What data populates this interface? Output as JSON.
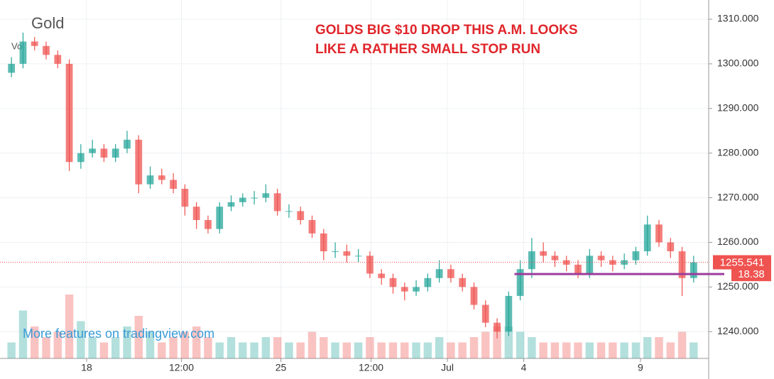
{
  "chart_data": {
    "type": "candlestick",
    "title": "Gold",
    "volume_label": "Vol",
    "annotation": [
      "GOLDS BIG $10 DROP THIS A.M.  LOOKS",
      "LIKE A RATHER SMALL STOP RUN"
    ],
    "watermark": "More features on tradingview.com",
    "up_color": "#26a69a",
    "down_color": "#ef5350",
    "open": [
      1298,
      1300,
      1305,
      1304,
      1302,
      1300,
      1278,
      1280,
      1281,
      1279,
      1281,
      1283,
      1273,
      1275,
      1274,
      1272,
      1268,
      1265,
      1263,
      1268,
      1269,
      1270,
      1270,
      1271,
      1267,
      1267,
      1265,
      1262,
      1258,
      1258,
      1257,
      1257,
      1253,
      1252,
      1250,
      1249,
      1250,
      1252,
      1254,
      1252,
      1250,
      1246,
      1242,
      1240,
      1248,
      1254,
      1258,
      1257,
      1256,
      1255,
      1253,
      1257,
      1256,
      1255,
      1256,
      1258,
      1264,
      1260,
      1258,
      1252
    ],
    "high": [
      1301.5,
      1307,
      1306,
      1305,
      1303,
      1301,
      1282,
      1283,
      1282,
      1282,
      1285,
      1284,
      1277,
      1276.5,
      1275.5,
      1273,
      1269,
      1266,
      1269,
      1270.5,
      1271,
      1271.5,
      1273,
      1272,
      1268.5,
      1268,
      1266,
      1263,
      1260,
      1259.5,
      1258.5,
      1258,
      1254,
      1253,
      1251,
      1251.5,
      1253,
      1256,
      1255,
      1253,
      1251,
      1247,
      1243,
      1249,
      1256,
      1261,
      1260,
      1258,
      1257,
      1256,
      1258.5,
      1258,
      1257,
      1257.5,
      1259,
      1266,
      1265,
      1261,
      1259,
      1257
    ],
    "low": [
      1297,
      1299,
      1303,
      1301,
      1299,
      1276,
      1276.5,
      1279,
      1278,
      1278,
      1280,
      1271,
      1272,
      1273,
      1271,
      1266,
      1263,
      1262,
      1262,
      1267,
      1268,
      1268.5,
      1269,
      1266,
      1265.5,
      1264,
      1261,
      1256,
      1256.5,
      1255.5,
      1255.5,
      1252,
      1250.5,
      1248.5,
      1247,
      1248,
      1249,
      1251,
      1251,
      1249,
      1245,
      1241,
      1238.5,
      1239,
      1247,
      1252,
      1255.5,
      1254.5,
      1253.5,
      1252,
      1252,
      1254.5,
      1253.5,
      1254,
      1255,
      1257,
      1259,
      1256.5,
      1248,
      1251
    ],
    "close": [
      1300,
      1305,
      1304,
      1302,
      1300,
      1278,
      1280,
      1281,
      1279,
      1281,
      1283,
      1273,
      1275,
      1274,
      1272,
      1268,
      1265,
      1263,
      1268,
      1269,
      1270,
      1270,
      1271,
      1267,
      1267,
      1265,
      1262,
      1258,
      1258,
      1257,
      1257,
      1253,
      1252,
      1250,
      1249,
      1250,
      1252,
      1254,
      1252,
      1250,
      1246,
      1242,
      1240,
      1248,
      1254,
      1258,
      1257,
      1256,
      1255,
      1253,
      1257,
      1256,
      1255,
      1256,
      1258,
      1264,
      1260,
      1258,
      1252,
      1255.5
    ],
    "volume": [
      3,
      9,
      6,
      4,
      5,
      12,
      7,
      4,
      3,
      4,
      6,
      8,
      5,
      3,
      4,
      5,
      6,
      4,
      3,
      4,
      3,
      3,
      4,
      4,
      3,
      3,
      5,
      4,
      3,
      3,
      3,
      4,
      3,
      3,
      3,
      3,
      3,
      4,
      3,
      3,
      4,
      5,
      6,
      6,
      5,
      4,
      3,
      3,
      3,
      3,
      3,
      3,
      3,
      3,
      3,
      4,
      4,
      3,
      5,
      3
    ],
    "xlim": [
      -0.5,
      59.5
    ],
    "xticks": [
      {
        "value": 6.5,
        "label": "18"
      },
      {
        "value": 14.7,
        "label": "12:00"
      },
      {
        "value": 23.3,
        "label": "25"
      },
      {
        "value": 31.1,
        "label": "12:00"
      },
      {
        "value": 37.7,
        "label": "Jul"
      },
      {
        "value": 44.3,
        "label": "4"
      },
      {
        "value": 54.4,
        "label": "9"
      }
    ],
    "ylim": [
      1234,
      1314.3
    ],
    "yticks": [
      {
        "value": 1240,
        "label": "1240.000"
      },
      {
        "value": 1250,
        "label": "1250.000"
      },
      {
        "value": 1260,
        "label": "1260.000"
      },
      {
        "value": 1270,
        "label": "1270.000"
      },
      {
        "value": 1280,
        "label": "1280.000"
      },
      {
        "value": 1290,
        "label": "1290.000"
      },
      {
        "value": 1300,
        "label": "1300.000"
      },
      {
        "value": 1310,
        "label": "1310.000"
      }
    ],
    "grid": true,
    "last_price": {
      "value": 1255.541,
      "label": "1255.541"
    },
    "level": {
      "value": 1252.9,
      "label": "18.38",
      "color": "#9c3d9c",
      "start": 43.5
    }
  }
}
